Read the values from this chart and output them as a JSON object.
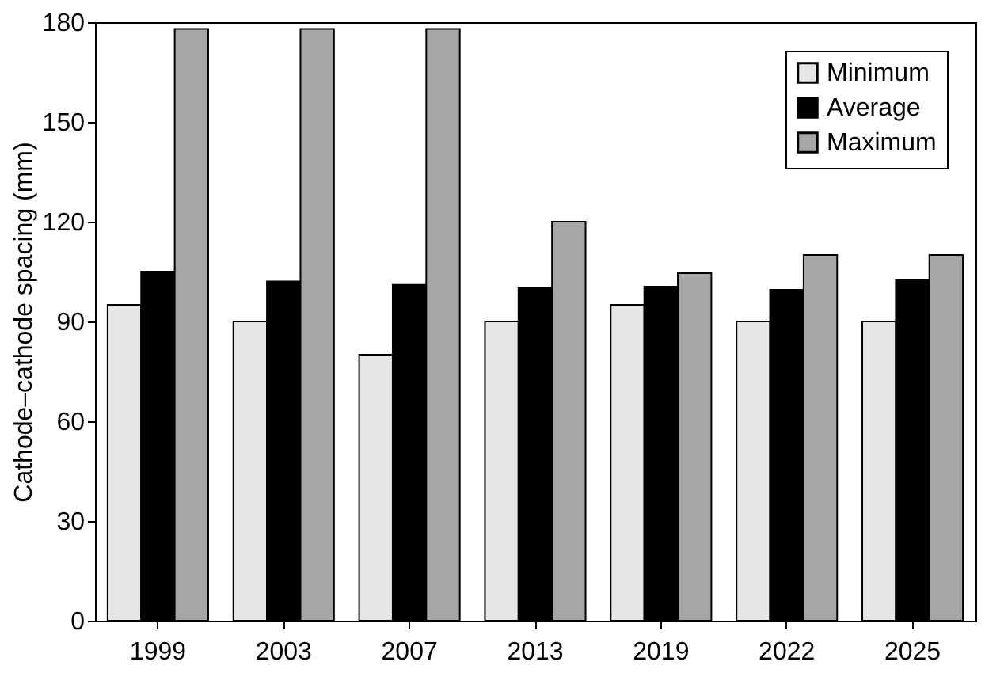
{
  "chart_data": {
    "type": "bar",
    "ylabel": "Cathode–cathode spacing (mm)",
    "categories": [
      "1999",
      "2003",
      "2007",
      "2013",
      "2019",
      "2022",
      "2025"
    ],
    "series": [
      {
        "name": "Minimum",
        "color": "#e6e6e6",
        "values": [
          95,
          90,
          80,
          90,
          95,
          90,
          90
        ]
      },
      {
        "name": "Average",
        "color": "#000000",
        "values": [
          105,
          102,
          101,
          100,
          100.5,
          99.5,
          102.5
        ]
      },
      {
        "name": "Maximum",
        "color": "#a6a6a6",
        "values": [
          178,
          178,
          178,
          120,
          104.5,
          110,
          110
        ]
      }
    ],
    "ylim": [
      0,
      180
    ],
    "yticks": [
      0,
      30,
      60,
      90,
      120,
      150,
      180
    ],
    "grid": false,
    "legend": "top right"
  }
}
